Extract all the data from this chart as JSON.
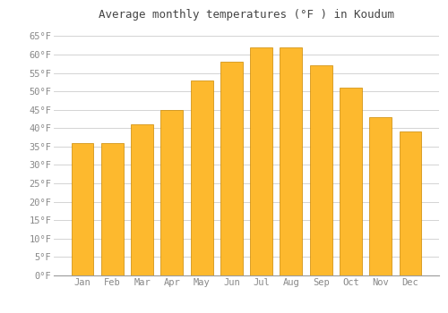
{
  "title": "Average monthly temperatures (°F ) in Koudum",
  "months": [
    "Jan",
    "Feb",
    "Mar",
    "Apr",
    "May",
    "Jun",
    "Jul",
    "Aug",
    "Sep",
    "Oct",
    "Nov",
    "Dec"
  ],
  "values": [
    36,
    36,
    41,
    45,
    53,
    58,
    62,
    62,
    57,
    51,
    43,
    39
  ],
  "bar_color_top": "#FDB92E",
  "bar_color_bottom": "#F5A623",
  "bar_edge_color": "#CC8800",
  "background_color": "#FFFFFF",
  "grid_color": "#CCCCCC",
  "ylim": [
    0,
    68
  ],
  "yticks": [
    0,
    5,
    10,
    15,
    20,
    25,
    30,
    35,
    40,
    45,
    50,
    55,
    60,
    65
  ],
  "title_fontsize": 9,
  "tick_fontsize": 7.5,
  "title_color": "#444444",
  "tick_color": "#888888"
}
